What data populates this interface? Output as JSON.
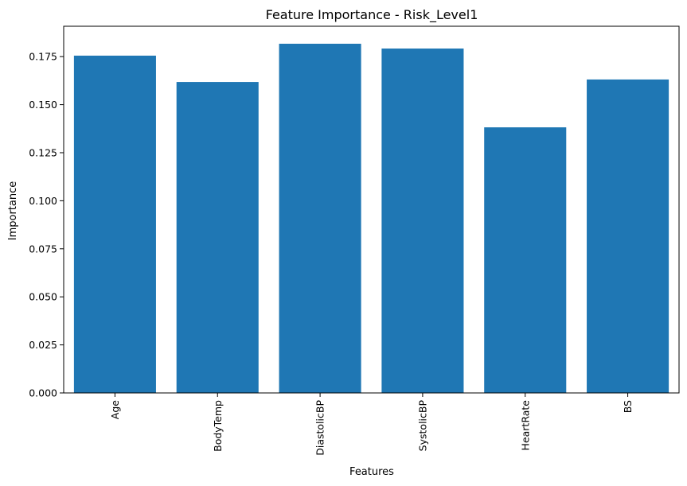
{
  "chart_data": {
    "type": "bar",
    "title": "Feature Importance - Risk_Level1",
    "xlabel": "Features",
    "ylabel": "Importance",
    "categories": [
      "Age",
      "BodyTemp",
      "DiastolicBP",
      "SystolicBP",
      "HeartRate",
      "BS"
    ],
    "values": [
      0.1755,
      0.1618,
      0.1817,
      0.1792,
      0.1382,
      0.1631
    ],
    "ylim": [
      0,
      0.1908
    ],
    "yticks": [
      0.0,
      0.025,
      0.05,
      0.075,
      0.1,
      0.125,
      0.15,
      0.175
    ],
    "ytick_labels": [
      "0.000",
      "0.025",
      "0.050",
      "0.075",
      "0.100",
      "0.125",
      "0.150",
      "0.175"
    ],
    "bar_color": "#1f77b4",
    "grid": false,
    "legend": "none"
  }
}
